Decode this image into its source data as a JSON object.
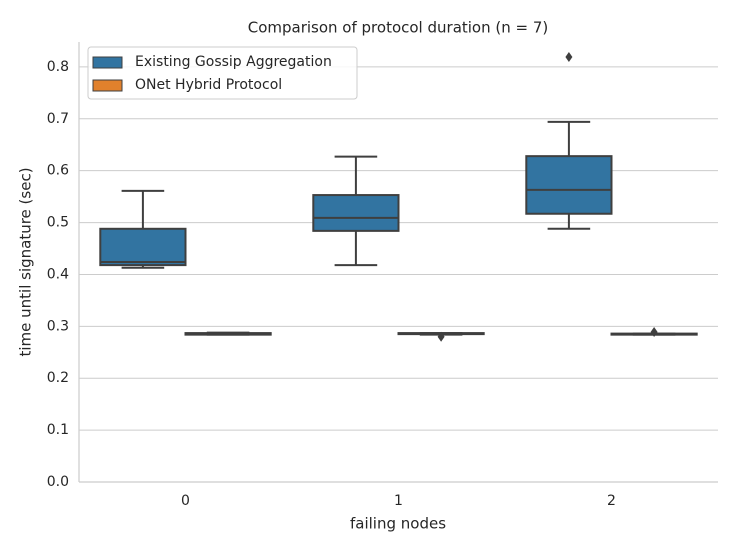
{
  "chart_data": {
    "type": "box",
    "title": "Comparison of protocol duration (n = 7)",
    "x_label": "failing nodes",
    "y_label": "time until signature (sec)",
    "categories": [
      "0",
      "1",
      "2"
    ],
    "series": [
      {
        "name": "Existing Gossip Aggregation",
        "color": "#3274a1",
        "boxes": [
          {
            "whislo": 0.413,
            "q1": 0.418,
            "med": 0.424,
            "q3": 0.488,
            "whishi": 0.561,
            "fliers": []
          },
          {
            "whislo": 0.418,
            "q1": 0.484,
            "med": 0.509,
            "q3": 0.553,
            "whishi": 0.627,
            "fliers": []
          },
          {
            "whislo": 0.488,
            "q1": 0.517,
            "med": 0.563,
            "q3": 0.628,
            "whishi": 0.694,
            "fliers": [
              0.819
            ]
          }
        ]
      },
      {
        "name": "ONet Hybrid Protocol",
        "color": "#e1812c",
        "boxes": [
          {
            "whislo": 0.284,
            "q1": 0.284,
            "med": 0.285,
            "q3": 0.287,
            "whishi": 0.288,
            "fliers": []
          },
          {
            "whislo": 0.284,
            "q1": 0.285,
            "med": 0.286,
            "q3": 0.287,
            "whishi": 0.287,
            "fliers": [
              0.28
            ]
          },
          {
            "whislo": 0.284,
            "q1": 0.284,
            "med": 0.285,
            "q3": 0.286,
            "whishi": 0.286,
            "fliers": [
              0.289
            ]
          }
        ]
      }
    ],
    "ylim": [
      0,
      0.848
    ],
    "yticks": [
      {
        "value": 0,
        "label": "0.0"
      },
      0.1,
      0.2,
      0.3,
      0.4,
      0.5,
      0.6,
      0.7,
      0.8
    ],
    "grid": true,
    "legend": "upper-left"
  }
}
